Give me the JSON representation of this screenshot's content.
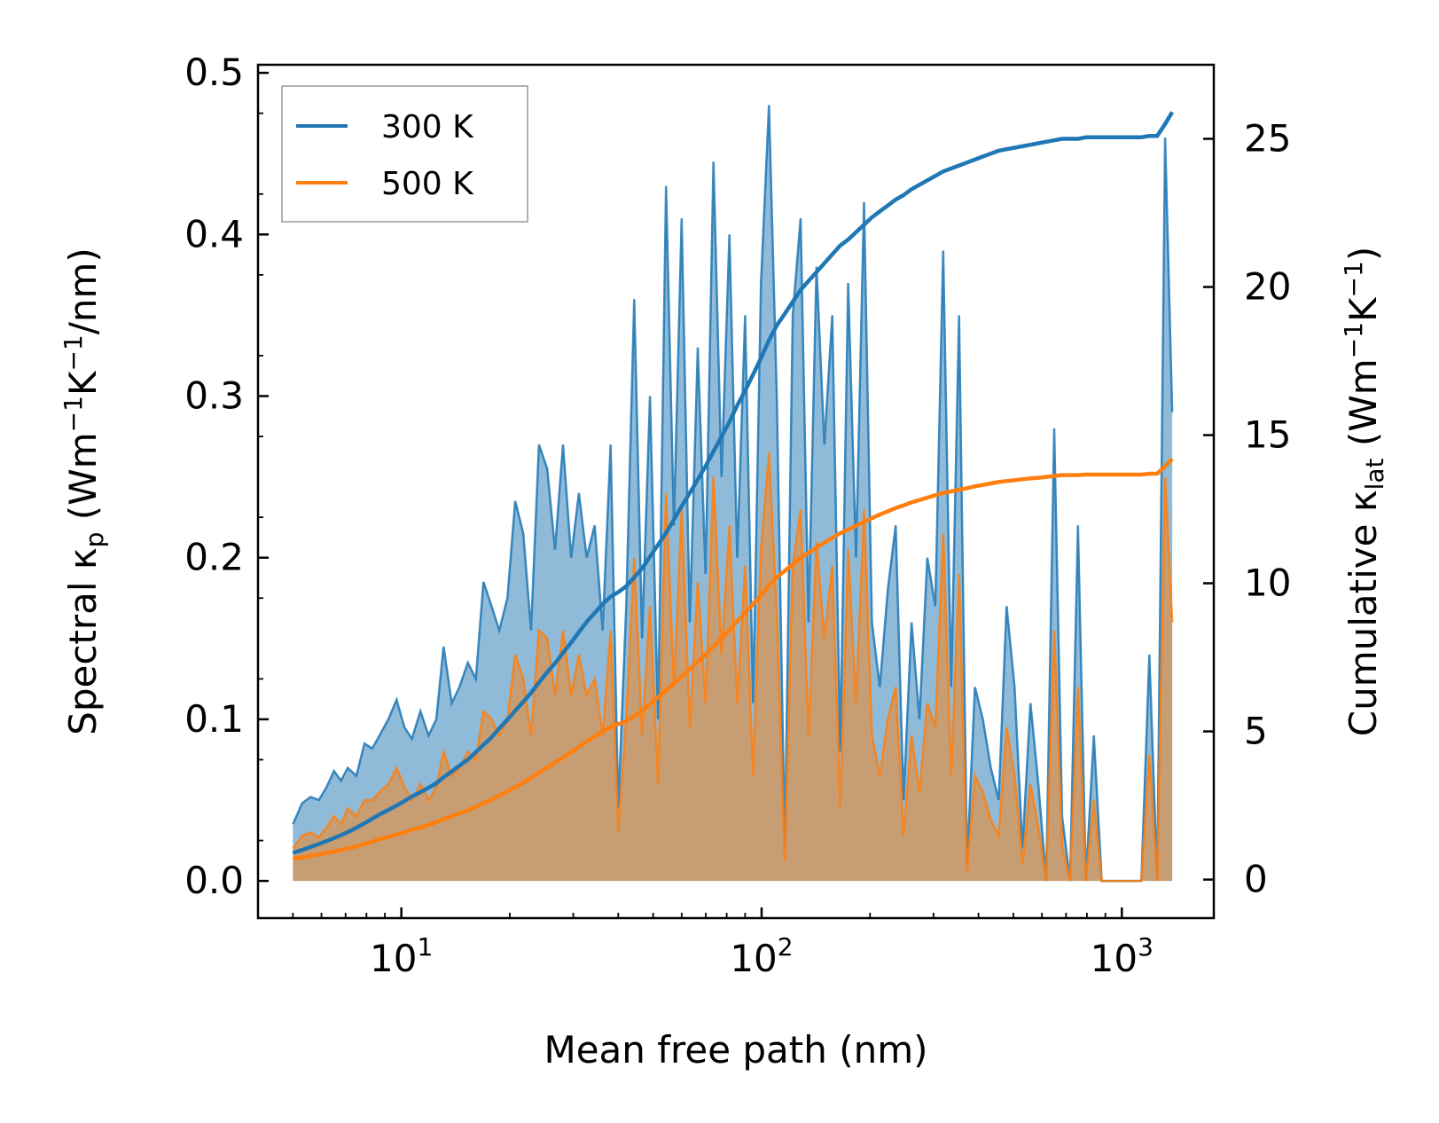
{
  "chart_data": {
    "type": "area+line (dual axis)",
    "xlabel": "Mean free path (nm)",
    "ylabel_left": {
      "prefix": "Spectral κ",
      "sub": "p",
      "open": " (Wm",
      "sup1": "−1",
      "mid": "K",
      "sup2": "−1",
      "close": "/nm)"
    },
    "ylabel_right": {
      "prefix": "Cumulative κ",
      "sub": "lat",
      "open": " (Wm",
      "sup1": "−1",
      "mid": "K",
      "sup2": "−1",
      "close": ")"
    },
    "xscale": "log",
    "xlim": [
      4,
      1800
    ],
    "x_ticks": [
      {
        "base": "10",
        "exp": "1",
        "value": 10
      },
      {
        "base": "10",
        "exp": "2",
        "value": 100
      },
      {
        "base": "10",
        "exp": "3",
        "value": 1000
      }
    ],
    "ylim_left": [
      -0.023,
      0.505
    ],
    "y_ticks_left": [
      "0.0",
      "0.1",
      "0.2",
      "0.3",
      "0.4",
      "0.5"
    ],
    "ylim_right": [
      -1.3,
      27.5
    ],
    "y_ticks_right": [
      "0",
      "5",
      "10",
      "15",
      "20",
      "25"
    ],
    "legend": {
      "position": "upper-left",
      "entries": [
        {
          "label": "300 K",
          "color": "#1f77b4"
        },
        {
          "label": "500 K",
          "color": "#ff7f0e"
        }
      ]
    },
    "x": [
      5.0,
      5.3,
      5.6,
      5.9,
      6.2,
      6.5,
      6.8,
      7.1,
      7.5,
      7.9,
      8.3,
      8.7,
      9.2,
      9.7,
      10.2,
      10.7,
      11.3,
      11.9,
      12.5,
      13.1,
      13.8,
      14.5,
      15.3,
      16.1,
      16.9,
      17.8,
      18.7,
      19.7,
      20.7,
      21.8,
      22.9,
      24.1,
      25.4,
      26.7,
      28.1,
      29.6,
      31.1,
      32.7,
      34.4,
      36.2,
      38.1,
      40.0,
      42.1,
      44.3,
      46.6,
      49.0,
      51.6,
      54.3,
      57.1,
      60.0,
      63.2,
      66.5,
      69.9,
      73.5,
      77.4,
      81.4,
      85.6,
      90.0,
      94.7,
      99.6,
      104.8,
      110.2,
      116.0,
      122.0,
      128.3,
      135.0,
      142.0,
      149.4,
      157.1,
      165.3,
      173.9,
      182.9,
      192.4,
      202.4,
      212.9,
      224.0,
      235.6,
      247.8,
      260.7,
      274.3,
      288.5,
      303.5,
      319.3,
      335.9,
      353.3,
      371.7,
      391.0,
      411.3,
      432.7,
      455.2,
      478.8,
      503.7,
      529.9,
      557.4,
      586.4,
      616.9,
      648.9,
      682.6,
      718.1,
      755.4,
      794.7,
      836.0,
      879.4,
      925.1,
      973.2,
      1023.8,
      1077.0,
      1133.0,
      1191.9,
      1253.9,
      1319.0,
      1380.0
    ],
    "series": [
      {
        "name": "300 K",
        "color": "#1f77b4",
        "spectral": [
          0.035,
          0.048,
          0.052,
          0.05,
          0.058,
          0.068,
          0.062,
          0.07,
          0.065,
          0.085,
          0.082,
          0.09,
          0.1,
          0.112,
          0.095,
          0.088,
          0.105,
          0.09,
          0.1,
          0.145,
          0.11,
          0.12,
          0.135,
          0.125,
          0.185,
          0.17,
          0.155,
          0.175,
          0.235,
          0.215,
          0.155,
          0.27,
          0.255,
          0.205,
          0.27,
          0.2,
          0.24,
          0.2,
          0.22,
          0.155,
          0.27,
          0.045,
          0.17,
          0.36,
          0.15,
          0.3,
          0.1,
          0.43,
          0.22,
          0.41,
          0.16,
          0.33,
          0.19,
          0.445,
          0.25,
          0.4,
          0.2,
          0.35,
          0.11,
          0.37,
          0.48,
          0.3,
          0.02,
          0.35,
          0.41,
          0.16,
          0.38,
          0.27,
          0.35,
          0.08,
          0.37,
          0.2,
          0.42,
          0.16,
          0.12,
          0.18,
          0.22,
          0.05,
          0.16,
          0.1,
          0.2,
          0.17,
          0.39,
          0.12,
          0.35,
          0.01,
          0.12,
          0.1,
          0.07,
          0.05,
          0.17,
          0.12,
          0.02,
          0.11,
          0.06,
          0.0,
          0.28,
          0.04,
          0.0,
          0.22,
          0.0,
          0.09,
          0.0,
          0.0,
          0.0,
          0.0,
          0.0,
          0.0,
          0.14,
          0.0,
          0.46,
          0.29
        ],
        "cumulative": [
          0.9,
          1.0,
          1.1,
          1.2,
          1.3,
          1.4,
          1.5,
          1.6,
          1.75,
          1.9,
          2.05,
          2.2,
          2.35,
          2.5,
          2.65,
          2.8,
          2.95,
          3.1,
          3.25,
          3.45,
          3.65,
          3.85,
          4.05,
          4.3,
          4.55,
          4.8,
          5.1,
          5.4,
          5.7,
          6.0,
          6.3,
          6.65,
          7.0,
          7.3,
          7.65,
          8.0,
          8.35,
          8.7,
          9.0,
          9.3,
          9.55,
          9.7,
          9.9,
          10.2,
          10.5,
          10.9,
          11.3,
          11.7,
          12.15,
          12.6,
          13.05,
          13.5,
          13.95,
          14.45,
          14.95,
          15.45,
          16.0,
          16.5,
          17.05,
          17.6,
          18.2,
          18.7,
          19.1,
          19.5,
          19.9,
          20.2,
          20.5,
          20.8,
          21.1,
          21.4,
          21.6,
          21.85,
          22.1,
          22.35,
          22.55,
          22.75,
          22.95,
          23.1,
          23.3,
          23.45,
          23.6,
          23.75,
          23.9,
          24.0,
          24.1,
          24.2,
          24.3,
          24.4,
          24.5,
          24.6,
          24.65,
          24.7,
          24.75,
          24.8,
          24.85,
          24.9,
          24.95,
          25.0,
          25.0,
          25.0,
          25.05,
          25.05,
          25.05,
          25.05,
          25.05,
          25.05,
          25.05,
          25.05,
          25.1,
          25.1,
          25.5,
          25.9
        ]
      },
      {
        "name": "500 K",
        "color": "#ff7f0e",
        "spectral": [
          0.02,
          0.028,
          0.03,
          0.027,
          0.033,
          0.04,
          0.035,
          0.045,
          0.04,
          0.05,
          0.05,
          0.055,
          0.06,
          0.07,
          0.058,
          0.05,
          0.06,
          0.05,
          0.058,
          0.08,
          0.065,
          0.07,
          0.08,
          0.075,
          0.105,
          0.1,
          0.09,
          0.1,
          0.14,
          0.125,
          0.09,
          0.155,
          0.15,
          0.115,
          0.155,
          0.115,
          0.14,
          0.115,
          0.125,
          0.09,
          0.155,
          0.03,
          0.1,
          0.2,
          0.09,
          0.17,
          0.06,
          0.24,
          0.12,
          0.23,
          0.095,
          0.185,
          0.11,
          0.25,
          0.14,
          0.22,
          0.11,
          0.195,
          0.065,
          0.205,
          0.265,
          0.165,
          0.012,
          0.195,
          0.23,
          0.09,
          0.21,
          0.15,
          0.195,
          0.045,
          0.205,
          0.11,
          0.23,
          0.09,
          0.065,
          0.1,
          0.12,
          0.028,
          0.09,
          0.055,
          0.11,
          0.095,
          0.215,
          0.065,
          0.19,
          0.005,
          0.065,
          0.055,
          0.038,
          0.028,
          0.095,
          0.065,
          0.01,
          0.06,
          0.033,
          0.0,
          0.155,
          0.022,
          0.0,
          0.12,
          0.0,
          0.05,
          0.0,
          0.0,
          0.0,
          0.0,
          0.0,
          0.0,
          0.078,
          0.0,
          0.25,
          0.16
        ],
        "cumulative": [
          0.7,
          0.75,
          0.8,
          0.85,
          0.9,
          0.95,
          1.0,
          1.05,
          1.12,
          1.2,
          1.28,
          1.36,
          1.44,
          1.52,
          1.6,
          1.68,
          1.76,
          1.85,
          1.94,
          2.04,
          2.14,
          2.24,
          2.34,
          2.46,
          2.58,
          2.7,
          2.84,
          2.98,
          3.12,
          3.27,
          3.42,
          3.6,
          3.78,
          3.95,
          4.12,
          4.3,
          4.48,
          4.66,
          4.83,
          5.0,
          5.15,
          5.25,
          5.35,
          5.52,
          5.7,
          5.92,
          6.15,
          6.38,
          6.62,
          6.86,
          7.1,
          7.35,
          7.6,
          7.87,
          8.15,
          8.42,
          8.72,
          9.0,
          9.3,
          9.6,
          9.93,
          10.2,
          10.42,
          10.64,
          10.86,
          11.03,
          11.2,
          11.37,
          11.53,
          11.69,
          11.81,
          11.94,
          12.07,
          12.2,
          12.32,
          12.43,
          12.54,
          12.63,
          12.73,
          12.81,
          12.89,
          12.97,
          13.05,
          13.1,
          13.16,
          13.21,
          13.27,
          13.32,
          13.37,
          13.42,
          13.45,
          13.48,
          13.51,
          13.54,
          13.56,
          13.59,
          13.62,
          13.65,
          13.65,
          13.65,
          13.67,
          13.67,
          13.67,
          13.67,
          13.67,
          13.67,
          13.67,
          13.67,
          13.7,
          13.7,
          13.95,
          14.2
        ]
      }
    ]
  }
}
